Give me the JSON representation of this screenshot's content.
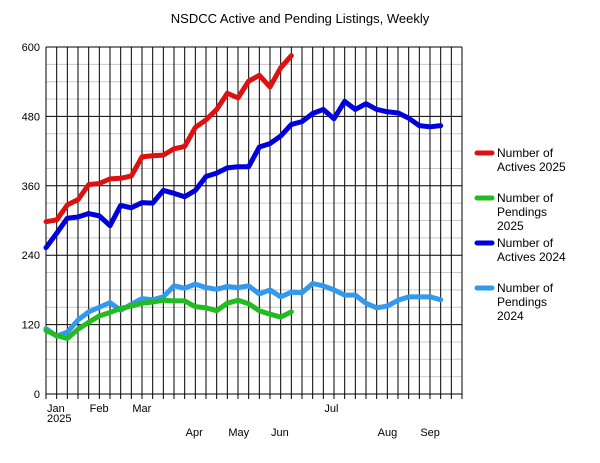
{
  "chart_data": {
    "type": "line",
    "title": "NSDCC Active and Pending Listings, Weekly",
    "xlabel": "",
    "ylabel": "",
    "ylim": [
      0,
      600
    ],
    "y_ticks": [
      0,
      120,
      240,
      360,
      480,
      600
    ],
    "x_tick_labels": [
      {
        "label": "Jan",
        "week": 0
      },
      {
        "label": "2025",
        "week": 0
      },
      {
        "label": "Feb",
        "week": 4
      },
      {
        "label": "Mar",
        "week": 8
      },
      {
        "label": "Apr",
        "week": 13
      },
      {
        "label": "May",
        "week": 17
      },
      {
        "label": "Jun",
        "week": 21
      },
      {
        "label": "Jul",
        "week": 26
      },
      {
        "label": "Aug",
        "week": 31
      },
      {
        "label": "Sep",
        "week": 35
      }
    ],
    "grid": true,
    "legend": "right",
    "series": [
      {
        "name": "Number of Actives 2025",
        "legend_lines": [
          "Number of",
          "Actives 2025"
        ],
        "color": "#dd1111",
        "values": [
          298,
          301,
          327,
          336,
          362,
          364,
          372,
          373,
          377,
          410,
          412,
          413,
          424,
          428,
          461,
          474,
          492,
          520,
          512,
          541,
          551,
          531,
          564,
          585
        ]
      },
      {
        "name": "Number of Pendings 2025",
        "legend_lines": [
          "Number of",
          "Pendings",
          "2025"
        ],
        "color": "#22bb22",
        "values": [
          110,
          101,
          96,
          112,
          124,
          135,
          141,
          148,
          152,
          157,
          159,
          162,
          161,
          161,
          151,
          149,
          144,
          157,
          162,
          156,
          144,
          138,
          133,
          142
        ]
      },
      {
        "name": "Number of Actives 2024",
        "legend_lines": [
          "Number of",
          "Actives 2024"
        ],
        "color": "#0000dd",
        "values": [
          253,
          278,
          304,
          306,
          312,
          308,
          291,
          326,
          322,
          331,
          330,
          352,
          347,
          341,
          352,
          376,
          382,
          391,
          393,
          393,
          427,
          433,
          446,
          466,
          471,
          485,
          492,
          476,
          506,
          492,
          502,
          492,
          488,
          486,
          477,
          464,
          462,
          464
        ]
      },
      {
        "name": "Number of Pendings 2024",
        "legend_lines": [
          "Number of",
          "Pendings",
          "2024"
        ],
        "color": "#3399ee",
        "values": [
          113,
          100,
          107,
          128,
          142,
          150,
          158,
          145,
          155,
          165,
          163,
          168,
          187,
          183,
          190,
          184,
          181,
          186,
          184,
          187,
          173,
          180,
          168,
          176,
          175,
          191,
          187,
          180,
          171,
          171,
          157,
          149,
          152,
          162,
          168,
          168,
          168,
          163
        ]
      }
    ]
  }
}
